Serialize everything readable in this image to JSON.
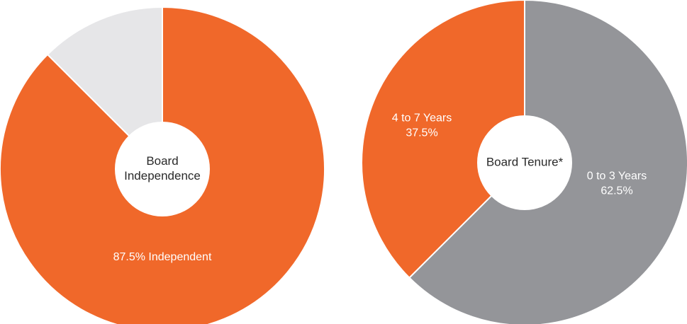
{
  "chart_data": [
    {
      "type": "pie",
      "title": "Board Independence",
      "title_lines": [
        "Board",
        "Independence"
      ],
      "slices": [
        {
          "value": 87.5,
          "label_lines": [
            "87.5% Independent"
          ],
          "color": "#f0682a"
        },
        {
          "value": 12.5,
          "label_lines": [],
          "color": "#e6e6e8"
        }
      ]
    },
    {
      "type": "pie",
      "title": "Board Tenure*",
      "title_lines": [
        "Board Tenure*"
      ],
      "slices": [
        {
          "value": 62.5,
          "label_lines": [
            "0 to 3 Years",
            "62.5%"
          ],
          "color": "#949599"
        },
        {
          "value": 37.5,
          "label_lines": [
            "4 to 7 Years",
            "37.5%"
          ],
          "color": "#f0682a"
        }
      ]
    }
  ]
}
